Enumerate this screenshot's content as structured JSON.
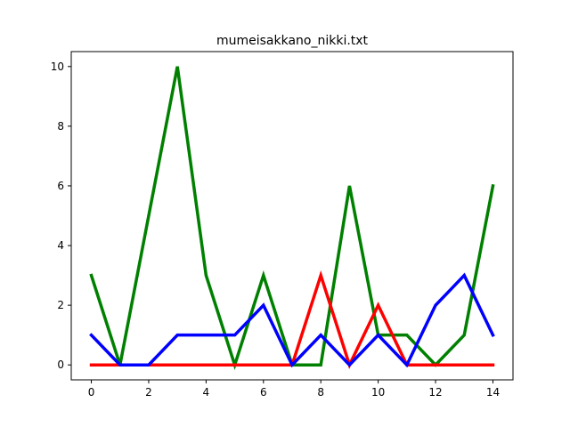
{
  "chart_data": {
    "type": "line",
    "title": "mumeisakkano_nikki.txt",
    "xlabel": "",
    "ylabel": "",
    "x": [
      0,
      1,
      2,
      3,
      4,
      5,
      6,
      7,
      8,
      9,
      10,
      11,
      12,
      13,
      14
    ],
    "xlim": [
      -0.7,
      14.7
    ],
    "ylim": [
      -0.5,
      10.5
    ],
    "xticks": [
      0,
      2,
      4,
      6,
      8,
      10,
      12,
      14
    ],
    "yticks": [
      0,
      2,
      4,
      6,
      8,
      10
    ],
    "grid": false,
    "series": [
      {
        "color": "#008000",
        "values": [
          3,
          0,
          5,
          10,
          3,
          0,
          3,
          0,
          0,
          6,
          1,
          1,
          0,
          1,
          6
        ]
      },
      {
        "color": "#ff0000",
        "values": [
          0,
          0,
          0,
          0,
          0,
          0,
          0,
          0,
          3,
          0,
          2,
          0,
          0,
          0,
          0
        ]
      },
      {
        "color": "#0000ff",
        "values": [
          1,
          0,
          0,
          1,
          1,
          1,
          2,
          0,
          1,
          0,
          1,
          0,
          2,
          3,
          1
        ]
      }
    ]
  }
}
